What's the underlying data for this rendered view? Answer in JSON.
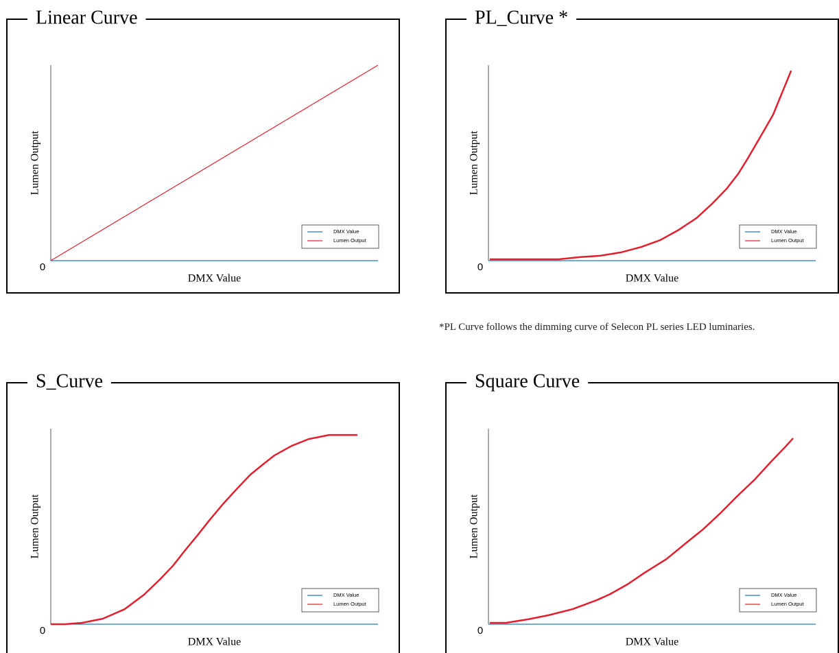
{
  "chart_data": [
    {
      "type": "line",
      "title": "Linear Curve",
      "x_label": "DMX Value",
      "y_label": "Lumen Output",
      "xlim": [
        0,
        100
      ],
      "ylim": [
        0,
        100
      ],
      "yticks": [
        0
      ],
      "series": [
        {
          "name": "DMX Value",
          "color": "#1f77c4",
          "x": [
            0,
            100
          ],
          "values": [
            0,
            0
          ]
        },
        {
          "name": "Lumen Output",
          "color": "#e0202e",
          "x": [
            0,
            100
          ],
          "values": [
            0,
            100
          ]
        }
      ]
    },
    {
      "type": "line",
      "title": "PL_Curve *",
      "x_label": "DMX Value",
      "y_label": "Lumen Output",
      "xlim": [
        0,
        100
      ],
      "ylim": [
        0,
        100
      ],
      "yticks": [
        0
      ],
      "series": [
        {
          "name": "DMX Value",
          "color": "#1f77c4",
          "x": [
            0,
            100
          ],
          "values": [
            0,
            0
          ]
        },
        {
          "name": "Lumen Output",
          "color": "#e0202e",
          "x": [
            0.4,
            21.5,
            27.8,
            34.1,
            40.4,
            46.7,
            52.5,
            58.2,
            63.6,
            68.6,
            72.8,
            76.4,
            79.1,
            81.8,
            84.5,
            87.0,
            88.9,
            90.8,
            92.5
          ],
          "values": [
            0.7,
            0.7,
            1.8,
            2.5,
            4.2,
            7.0,
            10.5,
            15.8,
            21.8,
            29.5,
            36.8,
            44.6,
            51.9,
            59.6,
            67.4,
            74.7,
            82.5,
            90.2,
            97.2
          ]
        }
      ]
    },
    {
      "type": "line",
      "title": "S_Curve",
      "x_label": "DMX Value",
      "y_label": "Lumen Output",
      "xlim": [
        0,
        100
      ],
      "ylim": [
        0,
        100
      ],
      "yticks": [
        0
      ],
      "series": [
        {
          "name": "DMX Value",
          "color": "#1f77c4",
          "x": [
            0,
            100
          ],
          "values": [
            0,
            0
          ]
        },
        {
          "name": "Lumen Output",
          "color": "#e0202e",
          "x": [
            0,
            4.4,
            9.6,
            15.9,
            22.6,
            28.5,
            33.3,
            37.3,
            41.1,
            44.9,
            48.4,
            52.6,
            56.8,
            61.0,
            64.6,
            68.3,
            73.6,
            78.8,
            85.1,
            93.7
          ],
          "values": [
            0,
            0,
            0.7,
            2.8,
            7.7,
            15.1,
            22.8,
            29.8,
            37.9,
            45.6,
            53.0,
            61.4,
            69.1,
            76.5,
            81.4,
            86.3,
            91.2,
            94.7,
            96.8,
            96.8
          ]
        }
      ]
    },
    {
      "type": "line",
      "title": "Square Curve",
      "x_label": "DMX Value",
      "y_label": "Lumen Output",
      "xlim": [
        0,
        100
      ],
      "ylim": [
        0,
        100
      ],
      "yticks": [
        0
      ],
      "series": [
        {
          "name": "DMX Value",
          "color": "#1f77c4",
          "x": [
            0,
            100
          ],
          "values": [
            0,
            0
          ]
        },
        {
          "name": "Lumen Output",
          "color": "#e0202e",
          "x": [
            0.4,
            5.4,
            12.1,
            18.4,
            25.7,
            33.1,
            37.2,
            42.5,
            47.7,
            54.4,
            60.3,
            65.5,
            70.7,
            75.9,
            81.2,
            86.4,
            90.6,
            93.1
          ],
          "values": [
            0.7,
            0.7,
            2.5,
            4.6,
            7.7,
            12.3,
            15.4,
            20.4,
            26.3,
            33.3,
            41.4,
            48.4,
            56.5,
            65.3,
            73.7,
            83.2,
            90.5,
            95.1
          ]
        }
      ]
    }
  ],
  "note": "*PL Curve follows the dimming curve of  Selecon PL series LED luminaries."
}
